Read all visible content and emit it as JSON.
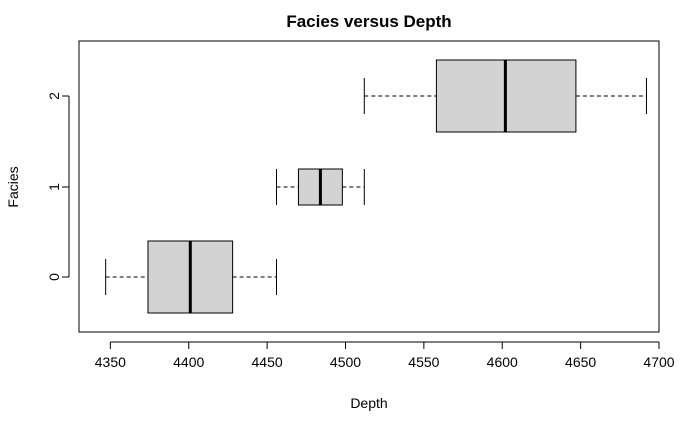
{
  "chart_data": {
    "type": "boxplot",
    "orientation": "horizontal",
    "title": "Facies versus Depth",
    "xlabel": "Depth",
    "ylabel": "Facies",
    "xlim": [
      4330,
      4700
    ],
    "x_ticks": [
      4350,
      4400,
      4450,
      4500,
      4550,
      4600,
      4650,
      4700
    ],
    "categories": [
      "0",
      "1",
      "2"
    ],
    "boxes": [
      {
        "category": "0",
        "whisker_low": 4347,
        "q1": 4374,
        "median": 4401,
        "q3": 4428,
        "whisker_high": 4456
      },
      {
        "category": "1",
        "whisker_low": 4456,
        "q1": 4470,
        "median": 4484,
        "q3": 4498,
        "whisker_high": 4512
      },
      {
        "category": "2",
        "whisker_low": 4512,
        "q1": 4558,
        "median": 4602,
        "q3": 4647,
        "whisker_high": 4692
      }
    ],
    "box_fill": "#d3d3d3",
    "grid": false,
    "legend": "none"
  }
}
